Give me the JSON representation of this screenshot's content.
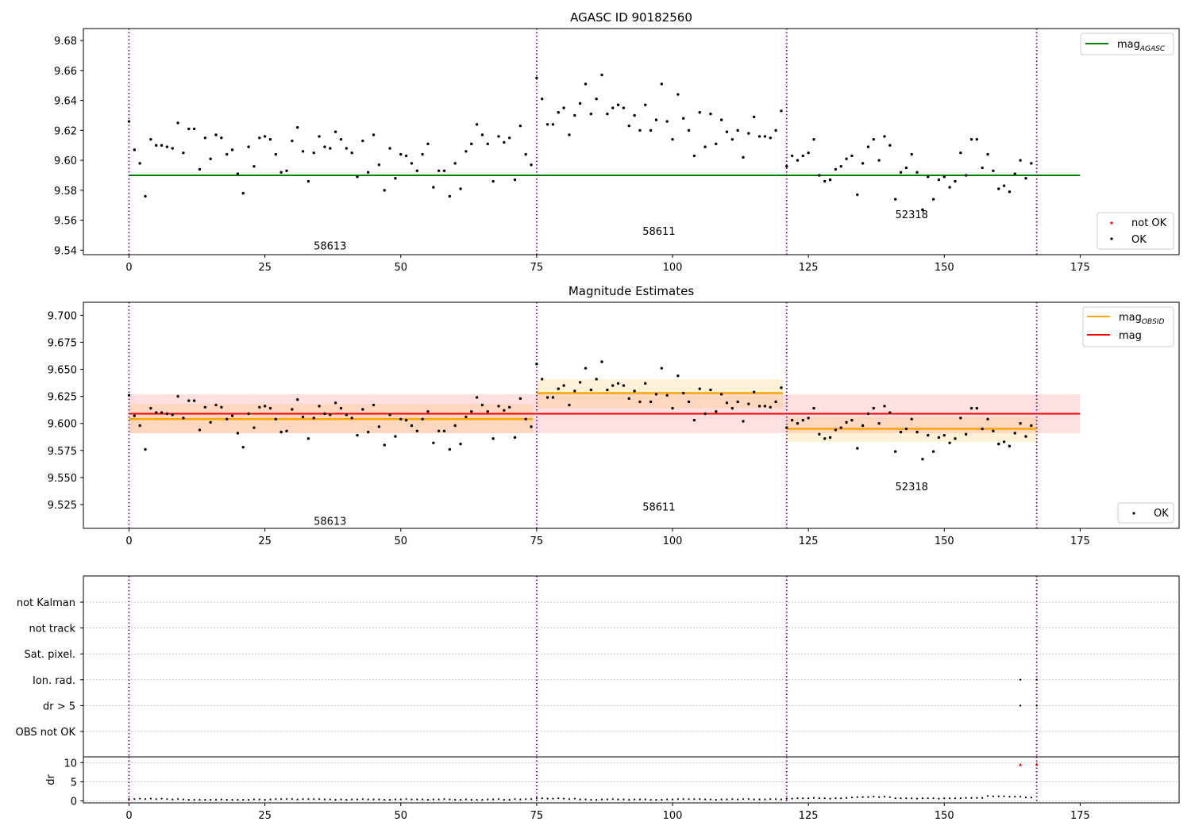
{
  "chart_data": [
    {
      "type": "scatter",
      "title": "AGASC ID 90182560",
      "xlim": [
        -8.4,
        193.2
      ],
      "ylim": [
        9.537,
        9.688
      ],
      "xticks": [
        0,
        25,
        50,
        75,
        100,
        125,
        150,
        175
      ],
      "yticks": [
        9.54,
        9.56,
        9.58,
        9.6,
        9.62,
        9.64,
        9.66,
        9.68
      ],
      "ytick_labels": [
        "9.54",
        "9.56",
        "9.58",
        "9.60",
        "9.62",
        "9.64",
        "9.66",
        "9.68"
      ],
      "obs_boundaries": [
        0,
        75,
        121,
        167
      ],
      "mag_agasc": 9.59,
      "mag_agasc_xrange": [
        0,
        175
      ],
      "obs_labels": [
        {
          "text": "58613",
          "x": 37,
          "y": 9.543
        },
        {
          "text": "58611",
          "x": 97.5,
          "y": 9.553
        },
        {
          "text": "52318",
          "x": 144,
          "y": 9.564
        }
      ],
      "legend_top": {
        "entries": [
          "mag",
          "AGASC"
        ],
        "position": "upper-right"
      },
      "legend_bottom": {
        "entries": [
          "not OK",
          "OK"
        ],
        "position": "lower-right"
      }
    },
    {
      "type": "scatter",
      "title": "Magnitude Estimates",
      "xlim": [
        -8.4,
        193.2
      ],
      "ylim": [
        9.503,
        9.712
      ],
      "xticks": [
        0,
        25,
        50,
        75,
        100,
        125,
        150,
        175
      ],
      "yticks": [
        9.525,
        9.55,
        9.575,
        9.6,
        9.625,
        9.65,
        9.675,
        9.7
      ],
      "ytick_labels": [
        "9.525",
        "9.550",
        "9.575",
        "9.600",
        "9.625",
        "9.650",
        "9.675",
        "9.700"
      ],
      "obs_boundaries": [
        0,
        75,
        121,
        167
      ],
      "mag": 9.609,
      "mag_band": [
        9.591,
        9.627
      ],
      "mag_xrange": [
        0,
        175
      ],
      "mag_obsid": [
        {
          "x": [
            0,
            74.3
          ],
          "value": 9.604,
          "band": [
            9.591,
            9.618
          ]
        },
        {
          "x": [
            75,
            120.3
          ],
          "value": 9.628,
          "band": [
            9.614,
            9.641
          ]
        },
        {
          "x": [
            121,
            167
          ],
          "value": 9.595,
          "band": [
            9.583,
            9.606
          ]
        }
      ],
      "obs_labels": [
        {
          "text": "58613",
          "x": 37,
          "y": 9.51
        },
        {
          "text": "58611",
          "x": 97.5,
          "y": 9.523
        },
        {
          "text": "52318",
          "x": 144,
          "y": 9.542
        }
      ],
      "legend_top": {
        "entries": [
          "mag",
          "OBSID",
          "mag"
        ],
        "position": "upper-right"
      },
      "legend_bottom": {
        "entries": [
          "OK"
        ],
        "position": "lower-right"
      }
    },
    {
      "type": "scatter",
      "xlim": [
        -8.4,
        193.2
      ],
      "xticks": [
        0,
        25,
        50,
        75,
        100,
        125,
        150,
        175
      ],
      "flag_labels": [
        "not Kalman",
        "not track",
        "Sat. pixel.",
        "Ion. rad.",
        "dr > 5",
        "OBS not OK"
      ],
      "flag_points": [
        {
          "x": 164,
          "flag": "Ion. rad."
        },
        {
          "x": 167,
          "flag": "Ion. rad."
        },
        {
          "x": 164,
          "flag": "dr > 5"
        },
        {
          "x": 167,
          "flag": "dr > 5"
        }
      ],
      "obs_boundaries": [
        0,
        75,
        121,
        167
      ]
    },
    {
      "type": "scatter",
      "ylabel": "dr",
      "xlim": [
        -8.4,
        193.2
      ],
      "ylim": [
        -0.5,
        11.5
      ],
      "yticks": [
        0,
        5,
        10
      ],
      "ytick_labels": [
        "0",
        "5",
        "10"
      ],
      "xticks": [
        0,
        25,
        50,
        75,
        100,
        125,
        150,
        175
      ],
      "not_ok_points": [
        [
          164,
          9.5
        ],
        [
          167,
          9.6
        ]
      ],
      "obs_boundaries": [
        0,
        75,
        121,
        167
      ]
    }
  ],
  "series": {
    "x": [
      0,
      1,
      2,
      3,
      4,
      5,
      6,
      7,
      8,
      9,
      10,
      11,
      12,
      13,
      14,
      15,
      16,
      17,
      18,
      19,
      20,
      21,
      22,
      23,
      24,
      25,
      26,
      27,
      28,
      29,
      30,
      31,
      32,
      33,
      34,
      35,
      36,
      37,
      38,
      39,
      40,
      41,
      42,
      43,
      44,
      45,
      46,
      47,
      48,
      49,
      50,
      51,
      52,
      53,
      54,
      55,
      56,
      57,
      58,
      59,
      60,
      61,
      62,
      63,
      64,
      65,
      66,
      67,
      68,
      69,
      70,
      71,
      72,
      73,
      74,
      75,
      76,
      77,
      78,
      79,
      80,
      81,
      82,
      83,
      84,
      85,
      86,
      87,
      88,
      89,
      90,
      91,
      92,
      93,
      94,
      95,
      96,
      97,
      98,
      99,
      100,
      101,
      102,
      103,
      104,
      105,
      106,
      107,
      108,
      109,
      110,
      111,
      112,
      113,
      114,
      115,
      116,
      117,
      118,
      119,
      120,
      121,
      122,
      123,
      124,
      125,
      126,
      127,
      128,
      129,
      130,
      131,
      132,
      133,
      134,
      135,
      136,
      137,
      138,
      139,
      140,
      141,
      142,
      143,
      144,
      145,
      146,
      147,
      148,
      149,
      150,
      151,
      152,
      153,
      154,
      155,
      156,
      157,
      158,
      159,
      160,
      161,
      162,
      163,
      164,
      165,
      166
    ],
    "mag": [
      9.626,
      9.607,
      9.598,
      9.576,
      9.614,
      9.61,
      9.61,
      9.609,
      9.608,
      9.625,
      9.605,
      9.621,
      9.621,
      9.594,
      9.615,
      9.601,
      9.617,
      9.615,
      9.604,
      9.607,
      9.591,
      9.578,
      9.609,
      9.596,
      9.615,
      9.616,
      9.614,
      9.604,
      9.592,
      9.593,
      9.613,
      9.622,
      9.606,
      9.586,
      9.605,
      9.616,
      9.609,
      9.608,
      9.619,
      9.614,
      9.608,
      9.605,
      9.589,
      9.613,
      9.592,
      9.617,
      9.597,
      9.58,
      9.608,
      9.588,
      9.604,
      9.603,
      9.598,
      9.593,
      9.604,
      9.611,
      9.582,
      9.593,
      9.593,
      9.576,
      9.598,
      9.581,
      9.606,
      9.611,
      9.624,
      9.617,
      9.611,
      9.586,
      9.616,
      9.612,
      9.615,
      9.587,
      9.623,
      9.604,
      9.597,
      9.655,
      9.641,
      9.624,
      9.624,
      9.632,
      9.635,
      9.617,
      9.63,
      9.638,
      9.651,
      9.631,
      9.641,
      9.657,
      9.631,
      9.635,
      9.637,
      9.635,
      9.623,
      9.63,
      9.62,
      9.637,
      9.62,
      9.627,
      9.651,
      9.626,
      9.614,
      9.644,
      9.628,
      9.62,
      9.603,
      9.632,
      9.609,
      9.631,
      9.611,
      9.627,
      9.619,
      9.614,
      9.62,
      9.602,
      9.618,
      9.629,
      9.616,
      9.616,
      9.615,
      9.62,
      9.633,
      9.596,
      9.603,
      9.6,
      9.603,
      9.605,
      9.614,
      9.59,
      9.586,
      9.587,
      9.594,
      9.596,
      9.601,
      9.603,
      9.577,
      9.598,
      9.609,
      9.614,
      9.6,
      9.616,
      9.61,
      9.574,
      9.592,
      9.595,
      9.604,
      9.592,
      9.567,
      9.589,
      9.574,
      9.587,
      9.589,
      9.582,
      9.586,
      9.605,
      9.59,
      9.614,
      9.614,
      9.595,
      9.604,
      9.593,
      9.581,
      9.583,
      9.579,
      9.591,
      9.6,
      9.588,
      9.598
    ],
    "dr": [
      0.5,
      0.5,
      0.6,
      0.5,
      0.6,
      0.5,
      0.6,
      0.5,
      0.4,
      0.5,
      0.4,
      0.3,
      0.3,
      0.3,
      0.3,
      0.3,
      0.3,
      0.4,
      0.3,
      0.3,
      0.3,
      0.3,
      0.3,
      0.4,
      0.4,
      0.3,
      0.4,
      0.5,
      0.5,
      0.5,
      0.5,
      0.4,
      0.5,
      0.5,
      0.5,
      0.5,
      0.4,
      0.4,
      0.3,
      0.4,
      0.3,
      0.4,
      0.4,
      0.5,
      0.4,
      0.4,
      0.4,
      0.3,
      0.3,
      0.4,
      0.4,
      0.5,
      0.4,
      0.4,
      0.4,
      0.3,
      0.4,
      0.4,
      0.5,
      0.4,
      0.3,
      0.3,
      0.4,
      0.3,
      0.3,
      0.3,
      0.4,
      0.4,
      0.5,
      0.3,
      0.3,
      0.5,
      0.4,
      0.5,
      0.5,
      0.7,
      0.7,
      0.6,
      0.6,
      0.7,
      0.6,
      0.5,
      0.6,
      0.4,
      0.4,
      0.3,
      0.3,
      0.4,
      0.4,
      0.5,
      0.4,
      0.4,
      0.3,
      0.4,
      0.4,
      0.4,
      0.3,
      0.3,
      0.3,
      0.4,
      0.4,
      0.5,
      0.5,
      0.5,
      0.5,
      0.5,
      0.4,
      0.4,
      0.3,
      0.4,
      0.4,
      0.5,
      0.4,
      0.5,
      0.5,
      0.4,
      0.4,
      0.4,
      0.5,
      0.5,
      0.4,
      0.6,
      0.6,
      0.7,
      0.7,
      0.7,
      0.8,
      0.7,
      0.7,
      0.6,
      0.7,
      0.7,
      0.8,
      0.9,
      1.0,
      1.0,
      1.0,
      1.1,
      1.0,
      1.1,
      1.0,
      0.7,
      0.7,
      0.7,
      0.7,
      0.6,
      0.7,
      0.7,
      0.7,
      0.6,
      0.7,
      0.7,
      0.7,
      0.7,
      0.8,
      0.8,
      0.8,
      0.8,
      1.3,
      1.2,
      1.2,
      1.2,
      1.1,
      1.1,
      1.1,
      0.9,
      0.9
    ]
  }
}
